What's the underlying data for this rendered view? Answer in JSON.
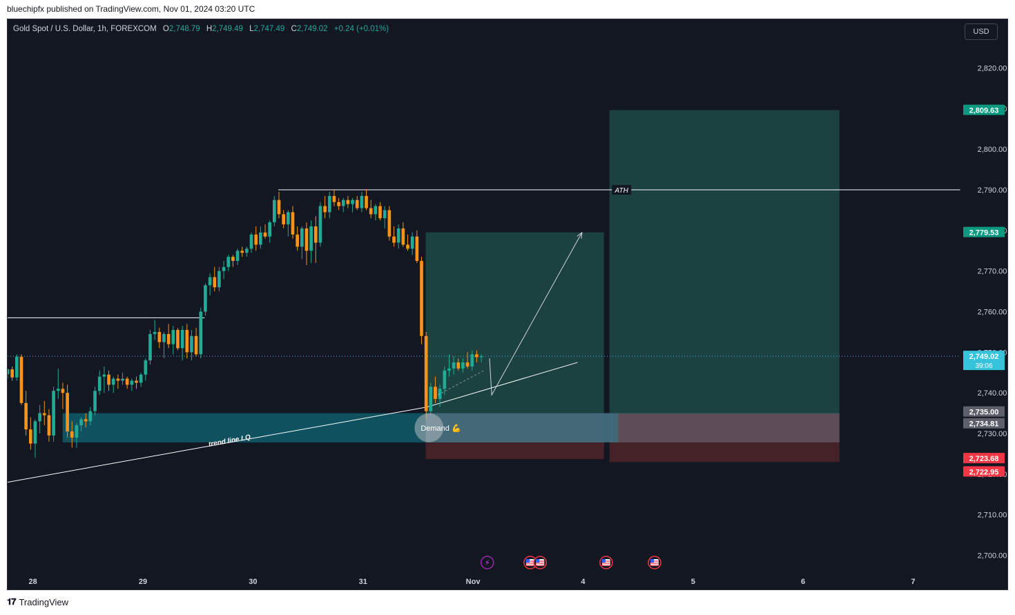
{
  "header": {
    "published_text": "bluechipfx published on TradingView.com, Nov 01, 2024 03:20 UTC"
  },
  "legend": {
    "symbol": "Gold Spot / U.S. Dollar, 1h, FOREXCOM",
    "open_label": "O",
    "open": "2,748.79",
    "high_label": "H",
    "high": "2,749.49",
    "low_label": "L",
    "low": "2,747.49",
    "close_label": "C",
    "close": "2,749.02",
    "change": "+0.24 (+0.01%)"
  },
  "currency_button": "USD",
  "footer": {
    "logo_text": "TradingView"
  },
  "colors": {
    "background": "#131722",
    "up": "#22ab94",
    "down": "#f7931a",
    "target_zone": "#1d4a46",
    "stop_zone": "#4a2329",
    "demand_zone": "#0f5c6a",
    "label_green": "#089981",
    "label_red": "#f23645",
    "label_gray": "#5d606b",
    "label_last": "#36c4dc"
  },
  "chart_data": {
    "type": "candlestick",
    "symbol": "Gold Spot / U.S. Dollar",
    "timeframe": "1h",
    "y_ticks": [
      "2,700.00",
      "2,710.00",
      "2,720.00",
      "2,730.00",
      "2,740.00",
      "2,750.00",
      "2,760.00",
      "2,770.00",
      "2,780.00",
      "2,790.00",
      "2,800.00",
      "2,810.00",
      "2,820.00"
    ],
    "ylim": [
      2696,
      2832
    ],
    "x_ticks": [
      "28",
      "29",
      "30",
      "31",
      "Nov",
      "4",
      "5",
      "6",
      "7"
    ],
    "x_tick_days": [
      0,
      1,
      2,
      3,
      4,
      5,
      6,
      7,
      8
    ],
    "xlim": [
      -0.23,
      8.43
    ],
    "price_labels": [
      {
        "text": "2,809.63",
        "value": 2809.63,
        "kind": "green"
      },
      {
        "text": "2,779.53",
        "value": 2779.53,
        "kind": "green"
      },
      {
        "text": "2,749.02",
        "value": 2749.02,
        "kind": "last",
        "sub": "39:06"
      },
      {
        "text": "2,735.00",
        "value": 2735.0,
        "kind": "gray"
      },
      {
        "text": "2,734.81",
        "value": 2734.81,
        "kind": "gray"
      },
      {
        "text": "2,723.68",
        "value": 2723.68,
        "kind": "red"
      },
      {
        "text": "2,722.95",
        "value": 2722.95,
        "kind": "red"
      }
    ],
    "ath": {
      "label": "ATH",
      "value": 2790.0,
      "x_start": 2.23
    },
    "resistance_line": {
      "value": 2758.5,
      "x_start": -0.23,
      "x_end": 1.56
    },
    "demand_zone": {
      "label": "Demand 💪",
      "y_top": 2735.0,
      "y_bottom": 2727.8,
      "x_start": 0.27,
      "x_end": 5.32
    },
    "trend_line": {
      "label": "trend line LQ",
      "points": [
        [
          -0.23,
          2718.0
        ],
        [
          3.58,
          2736.5
        ]
      ]
    },
    "trend_line_2": {
      "points": [
        [
          3.58,
          2736.5
        ],
        [
          4.95,
          2747.5
        ]
      ]
    },
    "positions": [
      {
        "x_start": 3.57,
        "x_end": 5.19,
        "entry": 2735.0,
        "target": 2779.53,
        "stop": 2723.68
      },
      {
        "x_start": 5.24,
        "x_end": 7.33,
        "entry": 2734.81,
        "target": 2809.63,
        "stop": 2722.95
      }
    ],
    "projection": {
      "points": [
        [
          4.15,
          2748.5
        ],
        [
          4.17,
          2739.5
        ],
        [
          4.99,
          2779.5
        ]
      ]
    },
    "event_icons": [
      {
        "day": 4.13,
        "kind": "energy"
      },
      {
        "day": 4.52,
        "kind": "us-flag"
      },
      {
        "day": 4.61,
        "kind": "us-flag"
      },
      {
        "day": 5.21,
        "kind": "us-flag"
      },
      {
        "day": 5.65,
        "kind": "us-flag"
      }
    ],
    "candles_day_start": -0.23,
    "candles_step_days": 0.0418,
    "candles": [
      [
        2744.6,
        2746.0,
        2743.5,
        2745.8
      ],
      [
        2745.8,
        2746.5,
        2743.0,
        2743.8
      ],
      [
        2743.8,
        2749.5,
        2743.0,
        2748.9
      ],
      [
        2748.9,
        2749.5,
        2737.0,
        2737.5
      ],
      [
        2737.5,
        2740.5,
        2729.5,
        2731.0
      ],
      [
        2731.0,
        2734.0,
        2726.0,
        2727.5
      ],
      [
        2727.5,
        2733.5,
        2724.0,
        2733.0
      ],
      [
        2733.0,
        2737.0,
        2730.0,
        2735.0
      ],
      [
        2735.0,
        2738.0,
        2732.0,
        2734.5
      ],
      [
        2734.5,
        2736.0,
        2728.0,
        2729.5
      ],
      [
        2729.5,
        2741.5,
        2728.0,
        2740.5
      ],
      [
        2740.5,
        2746.0,
        2738.5,
        2741.0
      ],
      [
        2741.0,
        2742.5,
        2736.0,
        2740.0
      ],
      [
        2740.0,
        2742.0,
        2729.0,
        2730.5
      ],
      [
        2730.5,
        2733.0,
        2726.5,
        2729.0
      ],
      [
        2729.0,
        2732.5,
        2726.5,
        2732.0
      ],
      [
        2732.0,
        2734.0,
        2730.5,
        2733.5
      ],
      [
        2733.5,
        2735.0,
        2731.5,
        2733.0
      ],
      [
        2733.0,
        2736.5,
        2732.0,
        2735.5
      ],
      [
        2735.5,
        2741.5,
        2734.5,
        2740.5
      ],
      [
        2740.5,
        2745.5,
        2739.5,
        2744.0
      ],
      [
        2744.0,
        2746.5,
        2740.0,
        2744.5
      ],
      [
        2744.5,
        2745.5,
        2740.5,
        2742.0
      ],
      [
        2742.0,
        2744.0,
        2740.0,
        2743.5
      ],
      [
        2743.5,
        2744.5,
        2741.0,
        2743.0
      ],
      [
        2743.0,
        2745.0,
        2742.0,
        2743.5
      ],
      [
        2743.5,
        2744.0,
        2741.0,
        2742.0
      ],
      [
        2742.0,
        2743.5,
        2740.5,
        2743.0
      ],
      [
        2743.0,
        2744.0,
        2741.0,
        2742.5
      ],
      [
        2742.5,
        2745.0,
        2741.5,
        2744.5
      ],
      [
        2744.5,
        2748.5,
        2743.0,
        2748.0
      ],
      [
        2748.0,
        2755.5,
        2747.0,
        2754.5
      ],
      [
        2754.5,
        2758.0,
        2753.0,
        2755.0
      ],
      [
        2755.0,
        2756.0,
        2751.0,
        2752.5
      ],
      [
        2752.5,
        2755.0,
        2748.5,
        2754.5
      ],
      [
        2754.5,
        2757.0,
        2751.0,
        2752.0
      ],
      [
        2752.0,
        2756.5,
        2749.5,
        2755.5
      ],
      [
        2755.5,
        2756.0,
        2750.5,
        2751.0
      ],
      [
        2751.0,
        2756.5,
        2748.0,
        2755.5
      ],
      [
        2755.5,
        2757.0,
        2748.5,
        2750.0
      ],
      [
        2750.0,
        2755.5,
        2748.0,
        2754.0
      ],
      [
        2754.0,
        2756.0,
        2749.0,
        2749.5
      ],
      [
        2749.5,
        2761.0,
        2748.5,
        2760.0
      ],
      [
        2760.0,
        2767.0,
        2759.0,
        2766.5
      ],
      [
        2766.5,
        2769.5,
        2764.0,
        2768.5
      ],
      [
        2768.5,
        2771.0,
        2765.0,
        2766.0
      ],
      [
        2766.0,
        2771.0,
        2765.0,
        2770.0
      ],
      [
        2770.0,
        2772.5,
        2768.0,
        2771.0
      ],
      [
        2771.0,
        2774.0,
        2770.0,
        2773.5
      ],
      [
        2773.5,
        2774.0,
        2771.0,
        2772.5
      ],
      [
        2772.5,
        2775.5,
        2771.5,
        2775.0
      ],
      [
        2775.0,
        2776.0,
        2773.5,
        2774.5
      ],
      [
        2774.5,
        2776.0,
        2773.5,
        2775.5
      ],
      [
        2775.5,
        2779.5,
        2774.5,
        2779.0
      ],
      [
        2779.0,
        2781.0,
        2775.0,
        2776.5
      ],
      [
        2776.5,
        2781.0,
        2775.5,
        2779.5
      ],
      [
        2779.5,
        2781.5,
        2778.0,
        2778.5
      ],
      [
        2778.5,
        2782.5,
        2777.0,
        2782.0
      ],
      [
        2782.0,
        2788.5,
        2781.0,
        2787.5
      ],
      [
        2787.5,
        2789.5,
        2783.0,
        2784.0
      ],
      [
        2784.0,
        2785.0,
        2780.5,
        2781.5
      ],
      [
        2781.5,
        2785.0,
        2778.5,
        2784.5
      ],
      [
        2784.5,
        2786.0,
        2778.0,
        2779.0
      ],
      [
        2779.0,
        2781.0,
        2775.0,
        2776.0
      ],
      [
        2776.0,
        2781.0,
        2773.0,
        2780.5
      ],
      [
        2780.5,
        2782.0,
        2771.5,
        2775.0
      ],
      [
        2775.0,
        2782.5,
        2772.0,
        2781.0
      ],
      [
        2781.0,
        2783.5,
        2772.0,
        2777.0
      ],
      [
        2777.0,
        2787.0,
        2776.0,
        2786.0
      ],
      [
        2786.0,
        2788.5,
        2783.0,
        2784.5
      ],
      [
        2784.5,
        2789.5,
        2783.0,
        2788.5
      ],
      [
        2788.5,
        2790.0,
        2786.0,
        2787.0
      ],
      [
        2787.0,
        2788.0,
        2785.0,
        2786.0
      ],
      [
        2786.0,
        2788.0,
        2784.5,
        2787.5
      ],
      [
        2787.5,
        2788.5,
        2785.5,
        2786.5
      ],
      [
        2786.5,
        2788.0,
        2784.5,
        2787.5
      ],
      [
        2787.5,
        2788.5,
        2785.0,
        2785.5
      ],
      [
        2785.5,
        2789.5,
        2784.5,
        2788.5
      ],
      [
        2788.5,
        2790.0,
        2785.0,
        2785.5
      ],
      [
        2785.5,
        2787.5,
        2783.0,
        2784.0
      ],
      [
        2784.0,
        2786.5,
        2782.5,
        2786.0
      ],
      [
        2786.0,
        2787.0,
        2782.5,
        2783.0
      ],
      [
        2783.0,
        2786.0,
        2780.5,
        2785.0
      ],
      [
        2785.0,
        2786.0,
        2777.5,
        2778.5
      ],
      [
        2778.5,
        2781.0,
        2776.0,
        2777.0
      ],
      [
        2777.0,
        2781.5,
        2775.5,
        2780.5
      ],
      [
        2780.5,
        2782.0,
        2776.0,
        2776.5
      ],
      [
        2776.5,
        2779.0,
        2775.0,
        2775.5
      ],
      [
        2775.5,
        2779.5,
        2774.0,
        2778.5
      ],
      [
        2778.5,
        2780.0,
        2772.0,
        2772.5
      ],
      [
        2772.5,
        2773.5,
        2752.0,
        2754.0
      ],
      [
        2754.0,
        2755.0,
        2733.5,
        2735.5
      ],
      [
        2735.5,
        2742.5,
        2734.5,
        2741.5
      ],
      [
        2741.5,
        2744.0,
        2737.5,
        2738.5
      ],
      [
        2738.5,
        2742.0,
        2736.5,
        2741.0
      ],
      [
        2741.0,
        2746.5,
        2739.5,
        2745.5
      ],
      [
        2745.5,
        2749.5,
        2744.0,
        2746.0
      ],
      [
        2746.0,
        2749.0,
        2744.5,
        2747.5
      ],
      [
        2747.5,
        2748.5,
        2745.5,
        2746.0
      ],
      [
        2746.0,
        2748.5,
        2745.0,
        2747.5
      ],
      [
        2747.5,
        2750.0,
        2746.0,
        2746.5
      ],
      [
        2746.5,
        2750.5,
        2745.5,
        2749.5
      ],
      [
        2749.5,
        2750.5,
        2747.5,
        2748.8
      ],
      [
        2748.8,
        2749.5,
        2747.5,
        2749.0
      ]
    ]
  }
}
